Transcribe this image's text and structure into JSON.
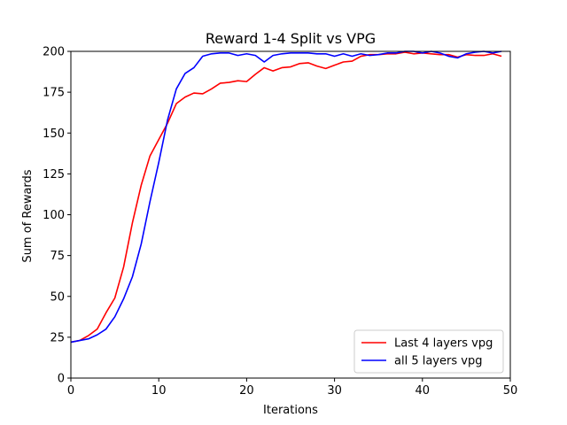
{
  "chart_data": {
    "type": "line",
    "title": "Reward 1-4 Split vs VPG",
    "xlabel": "Iterations",
    "ylabel": "Sum of Rewards",
    "xlim": [
      0,
      50
    ],
    "ylim": [
      0,
      200
    ],
    "xticks": [
      0,
      10,
      20,
      30,
      40,
      50
    ],
    "yticks": [
      0,
      25,
      50,
      75,
      100,
      125,
      150,
      175,
      200
    ],
    "grid": false,
    "legend_position": "lower-right",
    "series": [
      {
        "name": "Last 4 layers vpg",
        "color": "#ff0000",
        "x": [
          0,
          1,
          2,
          3,
          4,
          5,
          6,
          7,
          8,
          9,
          10,
          11,
          12,
          13,
          14,
          15,
          16,
          17,
          18,
          19,
          20,
          21,
          22,
          23,
          24,
          25,
          26,
          27,
          28,
          29,
          30,
          31,
          32,
          33,
          34,
          35,
          36,
          37,
          38,
          39,
          40,
          41,
          42,
          43,
          44,
          45,
          46,
          47,
          48,
          49
        ],
        "y": [
          22,
          23,
          26,
          30,
          40,
          49,
          68,
          95,
          118,
          136,
          146,
          156,
          168,
          172,
          174.5,
          174,
          177,
          180.5,
          181,
          182,
          181.5,
          186,
          190,
          188,
          190,
          190.5,
          192.5,
          193,
          191,
          189.5,
          191.5,
          193.5,
          194,
          197,
          198,
          198,
          198.5,
          198.5,
          199.5,
          198.5,
          199,
          198.5,
          198,
          198,
          196.5,
          198,
          197.5,
          197.5,
          198.5,
          197
        ]
      },
      {
        "name": "all 5 layers vpg",
        "color": "#0000ff",
        "x": [
          0,
          1,
          2,
          3,
          4,
          5,
          6,
          7,
          8,
          9,
          10,
          11,
          12,
          13,
          14,
          15,
          16,
          17,
          18,
          19,
          20,
          21,
          22,
          23,
          24,
          25,
          26,
          27,
          28,
          29,
          30,
          31,
          32,
          33,
          34,
          35,
          36,
          37,
          38,
          39,
          40,
          41,
          42,
          43,
          44,
          45,
          46,
          47,
          48,
          49
        ],
        "y": [
          22,
          23,
          24,
          26.5,
          30,
          37.5,
          48.5,
          62,
          82,
          108,
          132,
          158,
          177,
          186.5,
          190,
          197,
          198.5,
          199,
          199,
          197.5,
          198.5,
          197.5,
          193.5,
          197.5,
          198.5,
          199,
          199,
          199,
          198.5,
          198.5,
          197,
          198.5,
          197,
          198.5,
          197.5,
          198,
          199,
          199,
          200,
          200,
          199,
          200,
          199,
          197,
          196,
          198.5,
          199.5,
          200,
          199,
          200
        ]
      }
    ]
  }
}
